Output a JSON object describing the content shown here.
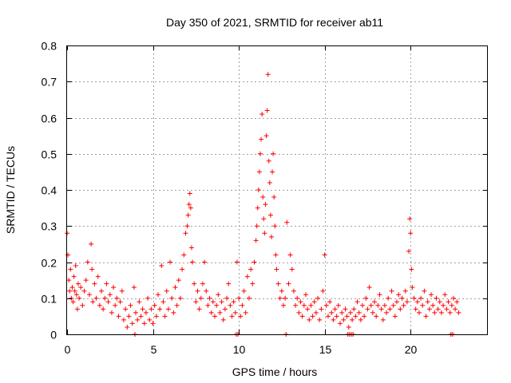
{
  "chart_data": {
    "type": "scatter",
    "title": "Day 350 of 2021, SRMTID for receiver ab11",
    "xlabel": "GPS time / hours",
    "ylabel": "SRMTID / TECUs",
    "xlim": [
      0,
      24.5
    ],
    "ylim": [
      0,
      0.8
    ],
    "x_ticks": [
      0,
      5,
      10,
      15,
      20
    ],
    "x_tick_labels": [
      "0",
      "5",
      "10",
      "15",
      "20"
    ],
    "y_ticks": [
      0,
      0.1,
      0.2,
      0.3,
      0.4,
      0.5,
      0.6,
      0.7,
      0.8
    ],
    "y_tick_labels": [
      "0",
      "0.1",
      "0.2",
      "0.3",
      "0.4",
      "0.5",
      "0.6",
      "0.7",
      "0.8"
    ],
    "grid": true,
    "marker": "plus",
    "color": "#ff0000",
    "series": [
      {
        "name": "SRMTID",
        "points": [
          [
            0.0,
            0.28
          ],
          [
            0.05,
            0.22
          ],
          [
            0.1,
            0.15
          ],
          [
            0.15,
            0.12
          ],
          [
            0.2,
            0.18
          ],
          [
            0.25,
            0.1
          ],
          [
            0.3,
            0.13
          ],
          [
            0.35,
            0.09
          ],
          [
            0.4,
            0.16
          ],
          [
            0.45,
            0.12
          ],
          [
            0.5,
            0.19
          ],
          [
            0.55,
            0.11
          ],
          [
            0.6,
            0.07
          ],
          [
            0.65,
            0.14
          ],
          [
            0.7,
            0.1
          ],
          [
            0.8,
            0.13
          ],
          [
            0.9,
            0.08
          ],
          [
            1.0,
            0.12
          ],
          [
            1.1,
            0.15
          ],
          [
            1.2,
            0.2
          ],
          [
            1.3,
            0.11
          ],
          [
            1.4,
            0.25
          ],
          [
            1.45,
            0.18
          ],
          [
            1.5,
            0.09
          ],
          [
            1.6,
            0.14
          ],
          [
            1.7,
            0.1
          ],
          [
            1.8,
            0.16
          ],
          [
            1.9,
            0.08
          ],
          [
            2.0,
            0.12
          ],
          [
            2.1,
            0.07
          ],
          [
            2.2,
            0.1
          ],
          [
            2.3,
            0.14
          ],
          [
            2.4,
            0.09
          ],
          [
            2.5,
            0.11
          ],
          [
            2.6,
            0.06
          ],
          [
            2.7,
            0.13
          ],
          [
            2.8,
            0.08
          ],
          [
            2.9,
            0.1
          ],
          [
            3.0,
            0.05
          ],
          [
            3.1,
            0.09
          ],
          [
            3.2,
            0.12
          ],
          [
            3.3,
            0.04
          ],
          [
            3.4,
            0.07
          ],
          [
            3.5,
            0.02
          ],
          [
            3.6,
            0.05
          ],
          [
            3.7,
            0.08
          ],
          [
            3.8,
            0.03
          ],
          [
            3.9,
            0.13
          ],
          [
            4.0,
            0.06
          ],
          [
            4.1,
            0.04
          ],
          [
            4.2,
            0.09
          ],
          [
            4.3,
            0.05
          ],
          [
            4.4,
            0.07
          ],
          [
            4.5,
            0.03
          ],
          [
            4.6,
            0.06
          ],
          [
            4.7,
            0.1
          ],
          [
            4.8,
            0.04
          ],
          [
            4.9,
            0.07
          ],
          [
            5.0,
            0.03
          ],
          [
            5.1,
            0.08
          ],
          [
            5.2,
            0.05
          ],
          [
            5.3,
            0.11
          ],
          [
            5.4,
            0.07
          ],
          [
            5.5,
            0.19
          ],
          [
            5.6,
            0.09
          ],
          [
            5.7,
            0.05
          ],
          [
            5.8,
            0.12
          ],
          [
            5.9,
            0.07
          ],
          [
            6.0,
            0.2
          ],
          [
            6.1,
            0.1
          ],
          [
            6.2,
            0.06
          ],
          [
            6.3,
            0.13
          ],
          [
            6.4,
            0.08
          ],
          [
            6.5,
            0.15
          ],
          [
            6.6,
            0.1
          ],
          [
            6.7,
            0.18
          ],
          [
            6.8,
            0.22
          ],
          [
            6.9,
            0.28
          ],
          [
            7.0,
            0.3
          ],
          [
            7.05,
            0.33
          ],
          [
            7.1,
            0.36
          ],
          [
            7.15,
            0.39
          ],
          [
            7.2,
            0.35
          ],
          [
            7.25,
            0.24
          ],
          [
            7.3,
            0.2
          ],
          [
            7.4,
            0.14
          ],
          [
            7.5,
            0.09
          ],
          [
            7.6,
            0.12
          ],
          [
            7.7,
            0.07
          ],
          [
            7.8,
            0.1
          ],
          [
            7.9,
            0.14
          ],
          [
            8.0,
            0.2
          ],
          [
            8.1,
            0.12
          ],
          [
            8.2,
            0.08
          ],
          [
            8.3,
            0.1
          ],
          [
            8.4,
            0.06
          ],
          [
            8.5,
            0.09
          ],
          [
            8.6,
            0.05
          ],
          [
            8.7,
            0.08
          ],
          [
            8.8,
            0.11
          ],
          [
            8.9,
            0.06
          ],
          [
            9.0,
            0.09
          ],
          [
            9.1,
            0.04
          ],
          [
            9.2,
            0.07
          ],
          [
            9.3,
            0.1
          ],
          [
            9.4,
            0.14
          ],
          [
            9.5,
            0.08
          ],
          [
            9.6,
            0.05
          ],
          [
            9.7,
            0.09
          ],
          [
            9.8,
            0.06
          ],
          [
            9.9,
            0.2
          ],
          [
            10.0,
            0.1
          ],
          [
            10.1,
            0.05
          ],
          [
            10.2,
            0.08
          ],
          [
            10.3,
            0.12
          ],
          [
            10.4,
            0.06
          ],
          [
            10.5,
            0.16
          ],
          [
            10.6,
            0.1
          ],
          [
            10.7,
            0.18
          ],
          [
            10.8,
            0.14
          ],
          [
            10.9,
            0.2
          ],
          [
            11.0,
            0.26
          ],
          [
            11.05,
            0.3
          ],
          [
            11.1,
            0.35
          ],
          [
            11.15,
            0.4
          ],
          [
            11.2,
            0.45
          ],
          [
            11.25,
            0.5
          ],
          [
            11.3,
            0.54
          ],
          [
            11.35,
            0.61
          ],
          [
            11.4,
            0.38
          ],
          [
            11.45,
            0.32
          ],
          [
            11.5,
            0.28
          ],
          [
            11.55,
            0.36
          ],
          [
            11.6,
            0.55
          ],
          [
            11.65,
            0.62
          ],
          [
            11.7,
            0.72
          ],
          [
            11.75,
            0.48
          ],
          [
            11.8,
            0.42
          ],
          [
            11.85,
            0.33
          ],
          [
            11.9,
            0.27
          ],
          [
            11.95,
            0.45
          ],
          [
            12.0,
            0.5
          ],
          [
            12.05,
            0.38
          ],
          [
            12.1,
            0.3
          ],
          [
            12.15,
            0.22
          ],
          [
            12.2,
            0.18
          ],
          [
            12.3,
            0.14
          ],
          [
            12.4,
            0.1
          ],
          [
            12.5,
            0.12
          ],
          [
            12.6,
            0.08
          ],
          [
            12.7,
            0.1
          ],
          [
            12.8,
            0.31
          ],
          [
            12.9,
            0.14
          ],
          [
            13.0,
            0.22
          ],
          [
            13.1,
            0.18
          ],
          [
            13.2,
            0.12
          ],
          [
            13.3,
            0.08
          ],
          [
            13.4,
            0.1
          ],
          [
            13.5,
            0.06
          ],
          [
            13.6,
            0.09
          ],
          [
            13.7,
            0.05
          ],
          [
            13.8,
            0.08
          ],
          [
            13.9,
            0.11
          ],
          [
            14.0,
            0.07
          ],
          [
            14.1,
            0.04
          ],
          [
            14.2,
            0.08
          ],
          [
            14.3,
            0.05
          ],
          [
            14.4,
            0.09
          ],
          [
            14.5,
            0.06
          ],
          [
            14.6,
            0.1
          ],
          [
            14.7,
            0.04
          ],
          [
            14.8,
            0.07
          ],
          [
            14.9,
            0.12
          ],
          [
            15.0,
            0.22
          ],
          [
            15.1,
            0.08
          ],
          [
            15.2,
            0.05
          ],
          [
            15.3,
            0.09
          ],
          [
            15.4,
            0.06
          ],
          [
            15.5,
            0.04
          ],
          [
            15.6,
            0.07
          ],
          [
            15.7,
            0.05
          ],
          [
            15.8,
            0.08
          ],
          [
            15.9,
            0.03
          ],
          [
            16.0,
            0.06
          ],
          [
            16.1,
            0.04
          ],
          [
            16.2,
            0.07
          ],
          [
            16.3,
            0.05
          ],
          [
            16.4,
            0.02
          ],
          [
            16.5,
            0.06
          ],
          [
            16.6,
            0.04
          ],
          [
            16.7,
            0.07
          ],
          [
            16.8,
            0.05
          ],
          [
            16.9,
            0.09
          ],
          [
            17.0,
            0.06
          ],
          [
            17.1,
            0.04
          ],
          [
            17.2,
            0.08
          ],
          [
            17.3,
            0.05
          ],
          [
            17.4,
            0.1
          ],
          [
            17.5,
            0.07
          ],
          [
            17.6,
            0.13
          ],
          [
            17.7,
            0.08
          ],
          [
            17.8,
            0.06
          ],
          [
            17.9,
            0.09
          ],
          [
            18.0,
            0.05
          ],
          [
            18.1,
            0.08
          ],
          [
            18.2,
            0.11
          ],
          [
            18.3,
            0.07
          ],
          [
            18.4,
            0.04
          ],
          [
            18.5,
            0.08
          ],
          [
            18.6,
            0.06
          ],
          [
            18.7,
            0.1
          ],
          [
            18.8,
            0.07
          ],
          [
            18.9,
            0.12
          ],
          [
            19.0,
            0.08
          ],
          [
            19.1,
            0.05
          ],
          [
            19.2,
            0.09
          ],
          [
            19.3,
            0.11
          ],
          [
            19.4,
            0.07
          ],
          [
            19.5,
            0.1
          ],
          [
            19.6,
            0.08
          ],
          [
            19.7,
            0.12
          ],
          [
            19.8,
            0.09
          ],
          [
            19.9,
            0.23
          ],
          [
            19.95,
            0.32
          ],
          [
            20.0,
            0.28
          ],
          [
            20.05,
            0.18
          ],
          [
            20.1,
            0.13
          ],
          [
            20.2,
            0.1
          ],
          [
            20.3,
            0.07
          ],
          [
            20.4,
            0.09
          ],
          [
            20.5,
            0.06
          ],
          [
            20.6,
            0.1
          ],
          [
            20.7,
            0.08
          ],
          [
            20.8,
            0.12
          ],
          [
            20.9,
            0.05
          ],
          [
            21.0,
            0.09
          ],
          [
            21.1,
            0.07
          ],
          [
            21.2,
            0.11
          ],
          [
            21.3,
            0.08
          ],
          [
            21.4,
            0.06
          ],
          [
            21.5,
            0.1
          ],
          [
            21.6,
            0.07
          ],
          [
            21.7,
            0.09
          ],
          [
            21.8,
            0.06
          ],
          [
            21.9,
            0.08
          ],
          [
            22.0,
            0.11
          ],
          [
            22.1,
            0.07
          ],
          [
            22.2,
            0.09
          ],
          [
            22.3,
            0.06
          ],
          [
            22.4,
            0.08
          ],
          [
            22.5,
            0.1
          ],
          [
            22.6,
            0.07
          ],
          [
            22.7,
            0.09
          ],
          [
            22.8,
            0.06
          ],
          [
            3.95,
            0.0
          ],
          [
            9.85,
            0.0
          ],
          [
            9.95,
            0.0
          ],
          [
            12.75,
            0.0
          ],
          [
            16.35,
            0.0
          ],
          [
            16.45,
            0.0
          ],
          [
            16.55,
            0.0
          ],
          [
            16.65,
            0.0
          ],
          [
            22.35,
            0.0
          ],
          [
            22.45,
            0.0
          ]
        ]
      }
    ]
  }
}
